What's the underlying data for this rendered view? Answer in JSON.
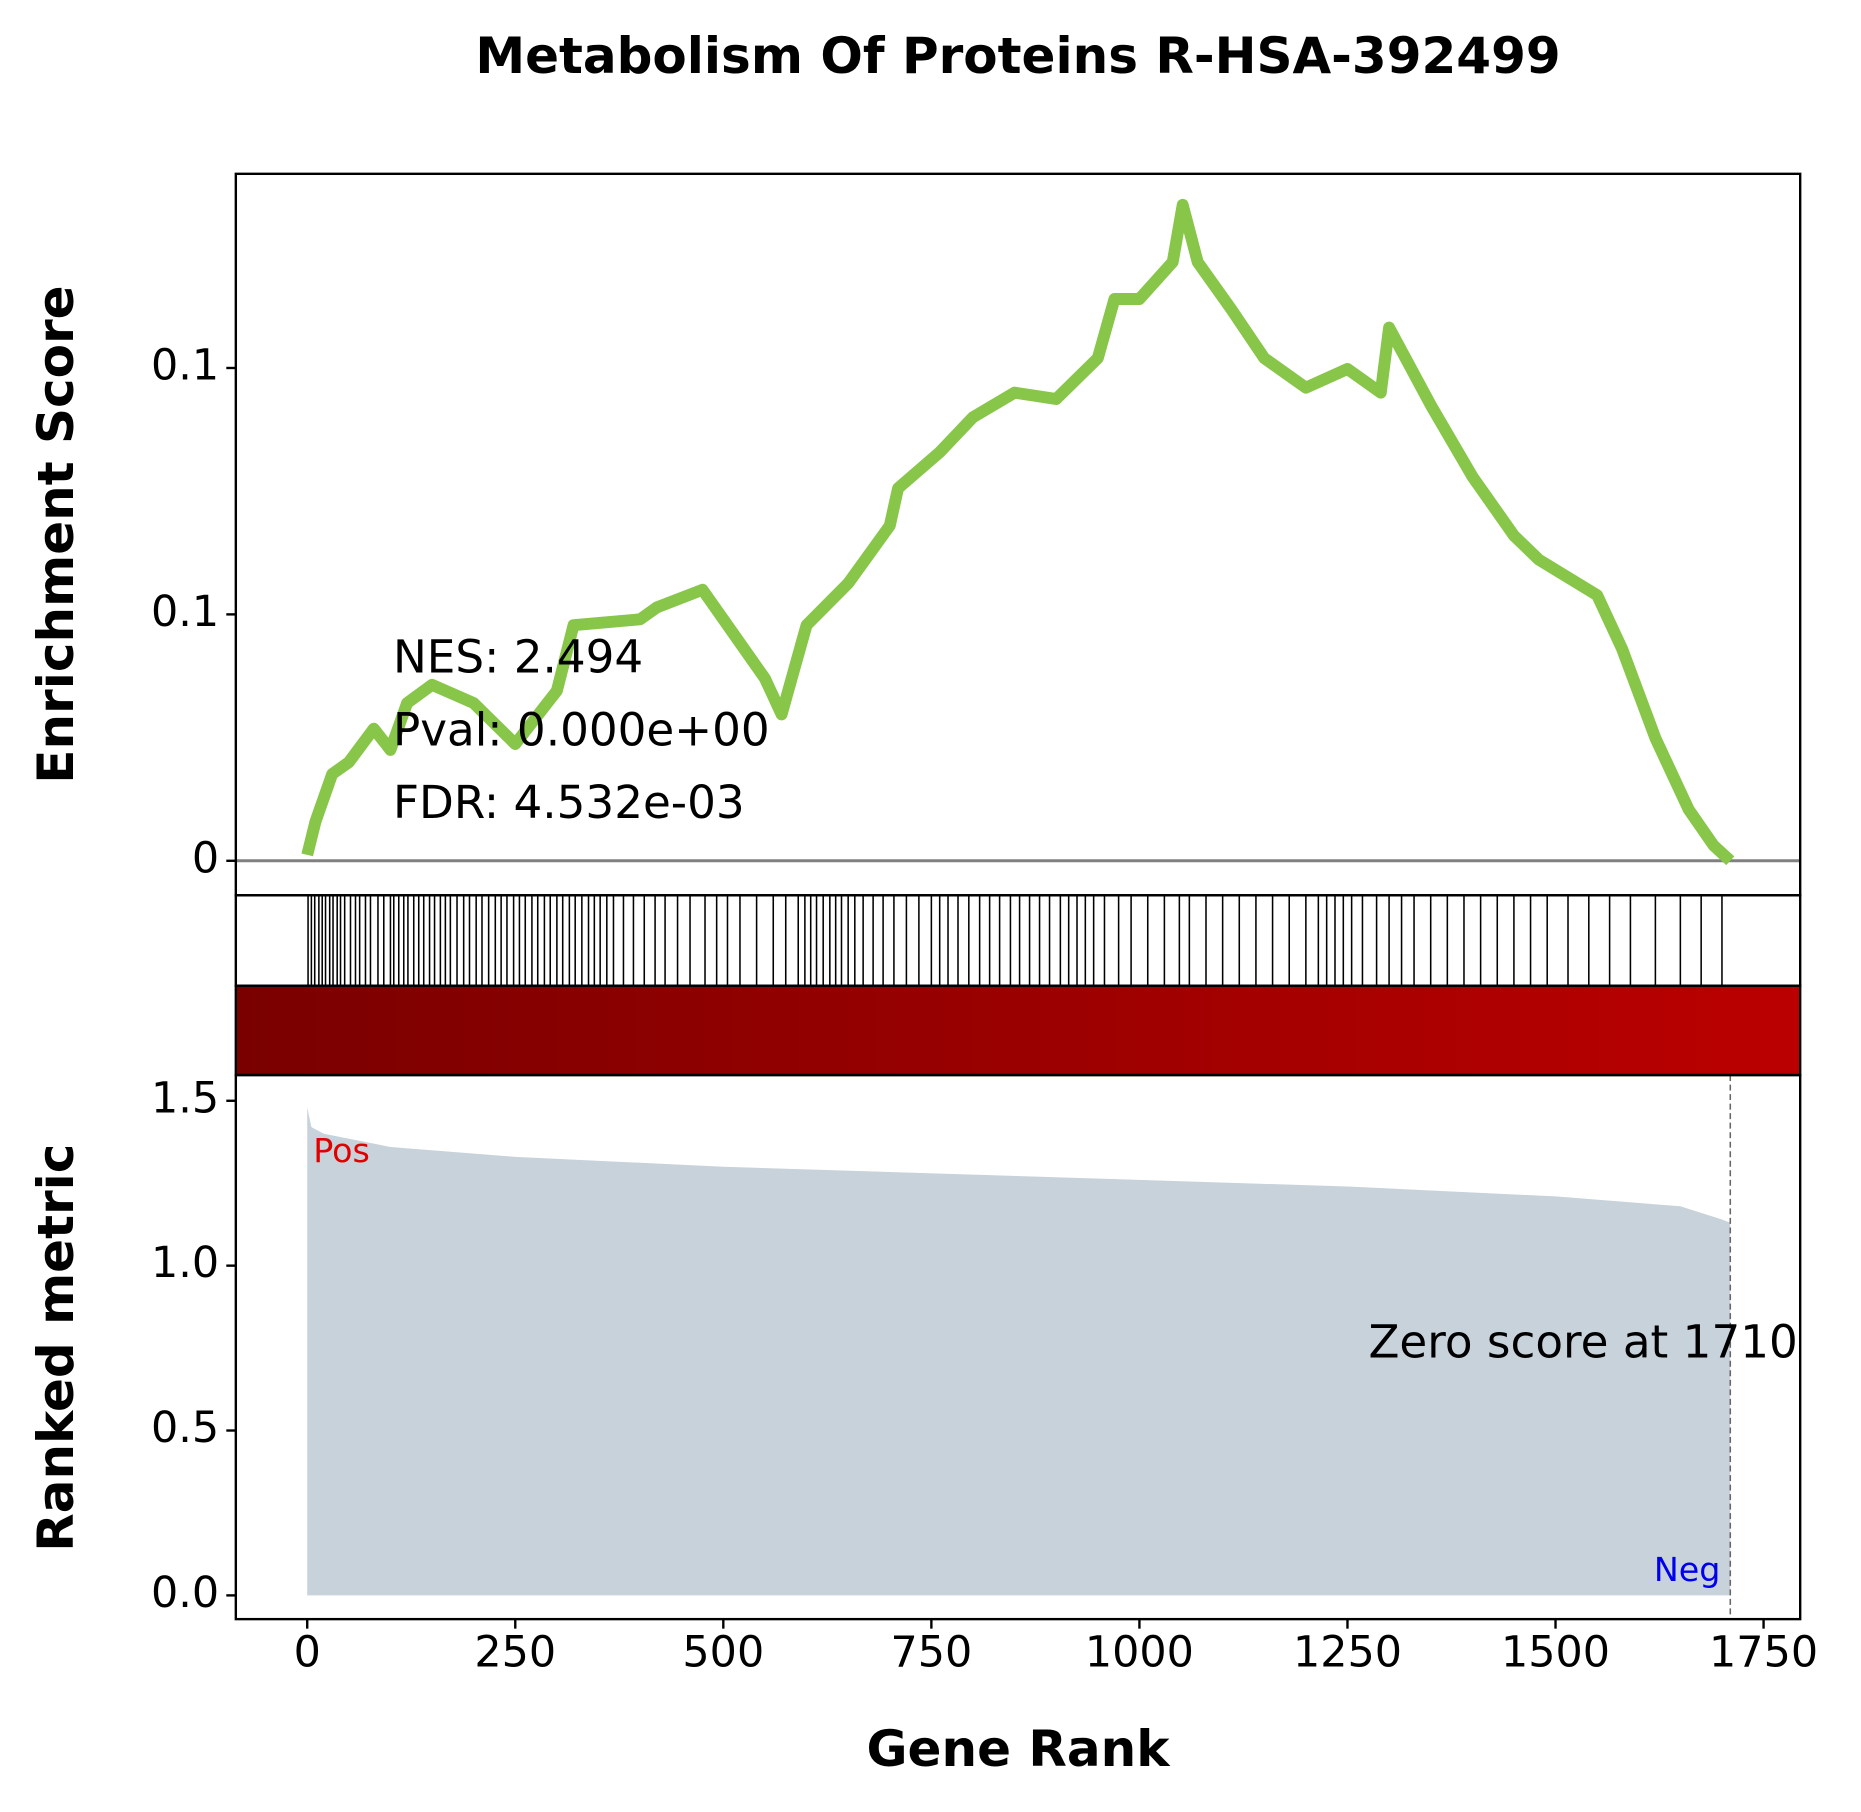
{
  "chart_data": [
    {
      "type": "line",
      "title": "Metabolism Of Proteins R-HSA-392499",
      "ylabel": "Enrichment Score",
      "ylim": [
        -0.007,
        0.1394
      ],
      "yticks": [
        0,
        {
          "value": 0.05,
          "label": "0.1"
        },
        0.1
      ],
      "color": "#88c64a",
      "zero_line": 0,
      "x": [
        0,
        10,
        30,
        50,
        80,
        100,
        120,
        150,
        200,
        250,
        300,
        320,
        400,
        420,
        475,
        550,
        570,
        600,
        650,
        700,
        710,
        760,
        800,
        850,
        900,
        950,
        970,
        1000,
        1040,
        1052,
        1070,
        1110,
        1150,
        1200,
        1250,
        1290,
        1300,
        1350,
        1400,
        1450,
        1480,
        1550,
        1580,
        1620,
        1660,
        1690,
        1710
      ],
      "values": [
        0.0012,
        0.008,
        0.0176,
        0.02,
        0.0268,
        0.0225,
        0.032,
        0.0357,
        0.032,
        0.0237,
        0.0345,
        0.0478,
        0.049,
        0.0514,
        0.055,
        0.037,
        0.0297,
        0.0478,
        0.0563,
        0.068,
        0.0756,
        0.0829,
        0.09,
        0.095,
        0.0937,
        0.102,
        0.114,
        0.114,
        0.1215,
        0.1331,
        0.1215,
        0.112,
        0.102,
        0.096,
        0.0998,
        0.095,
        0.1082,
        0.0925,
        0.078,
        0.066,
        0.0611,
        0.0539,
        0.043,
        0.0249,
        0.0104,
        0.0031,
        0
      ],
      "hits": [
        1,
        5,
        9,
        14,
        18,
        22,
        27,
        31,
        36,
        40,
        45,
        52,
        58,
        63,
        70,
        76,
        85,
        92,
        100,
        104,
        110,
        116,
        121,
        128,
        134,
        140,
        147,
        153,
        160,
        166,
        172,
        180,
        188,
        195,
        203,
        210,
        218,
        226,
        233,
        240,
        248,
        255,
        262,
        270,
        277,
        285,
        292,
        300,
        307,
        315,
        322,
        330,
        338,
        345,
        352,
        360,
        368,
        380,
        392,
        405,
        418,
        430,
        445,
        460,
        478,
        492,
        505,
        520,
        540,
        560,
        575,
        590,
        598,
        605,
        612,
        620,
        628,
        635,
        642,
        650,
        658,
        668,
        680,
        692,
        705,
        720,
        735,
        750,
        760,
        770,
        782,
        795,
        808,
        820,
        832,
        845,
        856,
        868,
        880,
        892,
        905,
        915,
        925,
        935,
        945,
        958,
        975,
        990,
        1010,
        1030,
        1048,
        1060,
        1080,
        1100,
        1120,
        1140,
        1160,
        1180,
        1200,
        1215,
        1225,
        1235,
        1245,
        1255,
        1268,
        1285,
        1300,
        1315,
        1330,
        1350,
        1370,
        1390,
        1410,
        1430,
        1450,
        1470,
        1490,
        1515,
        1540,
        1565,
        1590,
        1620,
        1650,
        1675,
        1700
      ],
      "annotations": [
        "NES: 2.494",
        "Pval: 0.000e+00",
        "FDR: 4.532e-03"
      ]
    },
    {
      "type": "area",
      "ylabel": "Ranked metric",
      "xlabel": "Gene Rank",
      "color": "#c8d2db",
      "xlim": [
        -85.8,
        1794
      ],
      "xticks": [
        0,
        250,
        500,
        750,
        1000,
        1250,
        1500,
        1750
      ],
      "ylim": [
        -0.072,
        1.578
      ],
      "yticks": [
        {
          "value": 0,
          "label": "0.0"
        },
        0.5,
        {
          "value": 1,
          "label": "1.0"
        },
        1.5
      ],
      "x": [
        0,
        5,
        20,
        100,
        250,
        500,
        1000,
        1250,
        1500,
        1650,
        1700,
        1710
      ],
      "values": [
        1.48,
        1.42,
        1.4,
        1.36,
        1.33,
        1.3,
        1.26,
        1.24,
        1.21,
        1.18,
        1.14,
        1.13
      ],
      "zero_rank": 1710,
      "annotations": [
        "Zero score at 1710",
        "Pos",
        "Neg"
      ]
    }
  ]
}
